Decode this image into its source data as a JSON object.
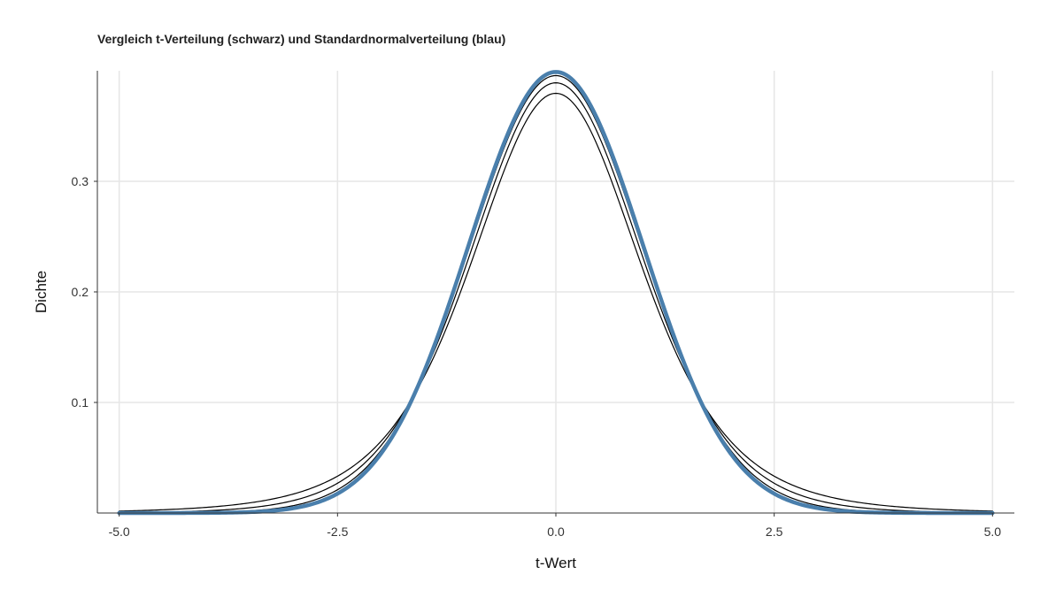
{
  "chart_data": {
    "type": "line",
    "title": "Vergleich t-Verteilung (schwarz) und Standardnormalverteilung (blau)",
    "xlabel": "t-Wert",
    "ylabel": "Dichte",
    "xlim": [
      -5.0,
      5.0
    ],
    "ylim": [
      0,
      0.4
    ],
    "x_ticks": [
      -5.0,
      -2.5,
      0.0,
      2.5,
      5.0
    ],
    "x_tick_labels": [
      "-5.0",
      "-2.5",
      "0.0",
      "2.5",
      "5.0"
    ],
    "y_ticks": [
      0.1,
      0.2,
      0.3
    ],
    "y_tick_labels": [
      "0.1",
      "0.2",
      "0.3"
    ],
    "grid": true,
    "x_range": [
      -5,
      5
    ],
    "series": [
      {
        "distribution": "t",
        "df": 5,
        "color": "#000000"
      },
      {
        "distribution": "t",
        "df": 10,
        "color": "#000000"
      },
      {
        "distribution": "t",
        "df": 30,
        "color": "#000000"
      },
      {
        "distribution": "normal",
        "mean": 0,
        "sd": 1,
        "color": "#4a7fac"
      }
    ]
  }
}
